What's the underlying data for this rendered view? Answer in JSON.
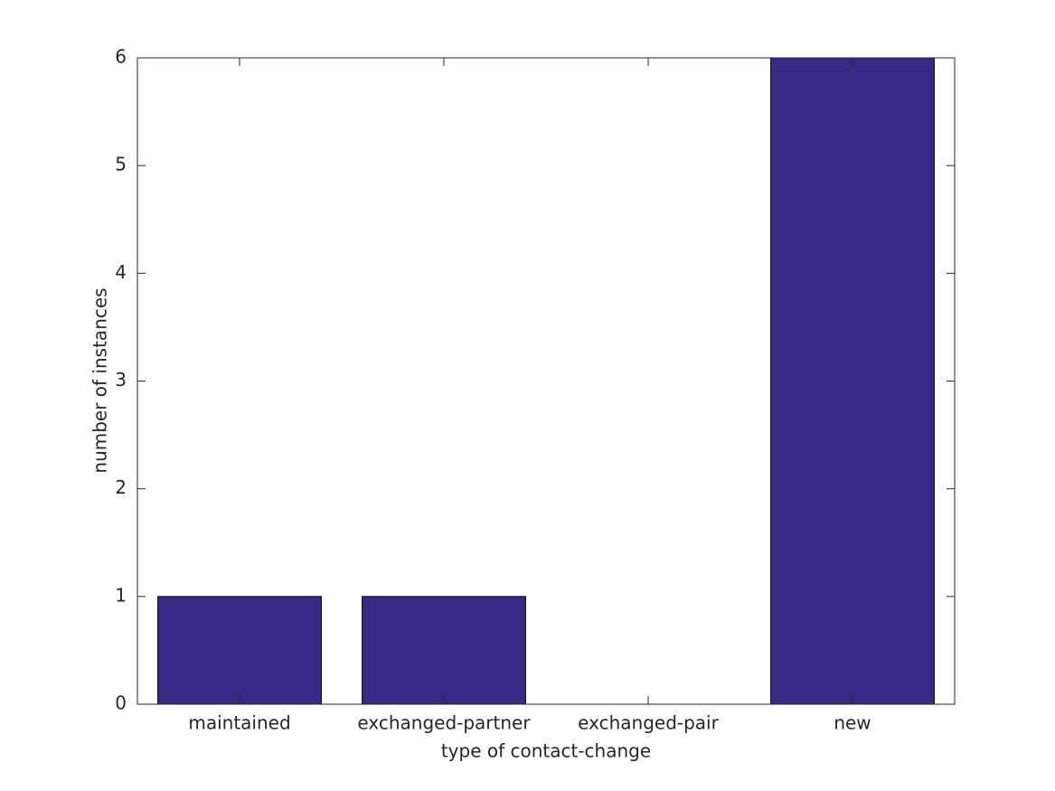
{
  "chart_data": {
    "type": "bar",
    "x_label": "type of contact-change",
    "y_label": "number of instances",
    "categories": [
      "maintained",
      "exchanged-partner",
      "exchanged-pair",
      "new"
    ],
    "values": [
      1,
      1,
      0,
      6
    ],
    "color": "#362a86",
    "ylim": [
      0,
      6
    ],
    "yticks": [
      0,
      1,
      2,
      3,
      4,
      5,
      6
    ],
    "grid": false
  }
}
